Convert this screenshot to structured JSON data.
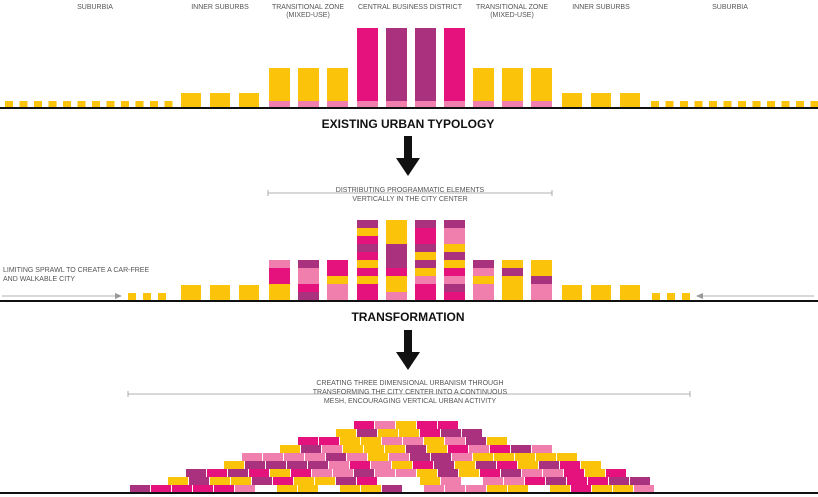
{
  "zones": [
    "SUBURBIA",
    "INNER SUBURBS",
    "TRANSITIONAL ZONE",
    "(MIXED-USE)",
    "CENTRAL BUSINESS DISTRICT",
    "TRANSITIONAL ZONE",
    "(MIXED-USE)",
    "INNER SUBURBS",
    "SUBURBIA"
  ],
  "existing": {
    "title": "EXISTING URBAN TYPOLOGY"
  },
  "transformation": {
    "title": "TRANSFORMATION",
    "note": [
      "DISTRIBUTING PROGRAMMATIC ELEMENTS",
      "VERTICALLY IN THE CITY CENTER"
    ],
    "side_note": [
      "LIMITING SPRAWL TO CREATE A CAR-FREE",
      "AND WALKABLE CITY"
    ]
  },
  "result": {
    "note": [
      "CREATING THREE DIMENSIONAL URBANISM THROUGH",
      "TRANSFORMING THE CITY CENTER INTO A CONTINUOUS",
      "MESH, ENCOURAGING VERTICAL URBAN ACTIVITY"
    ]
  }
}
